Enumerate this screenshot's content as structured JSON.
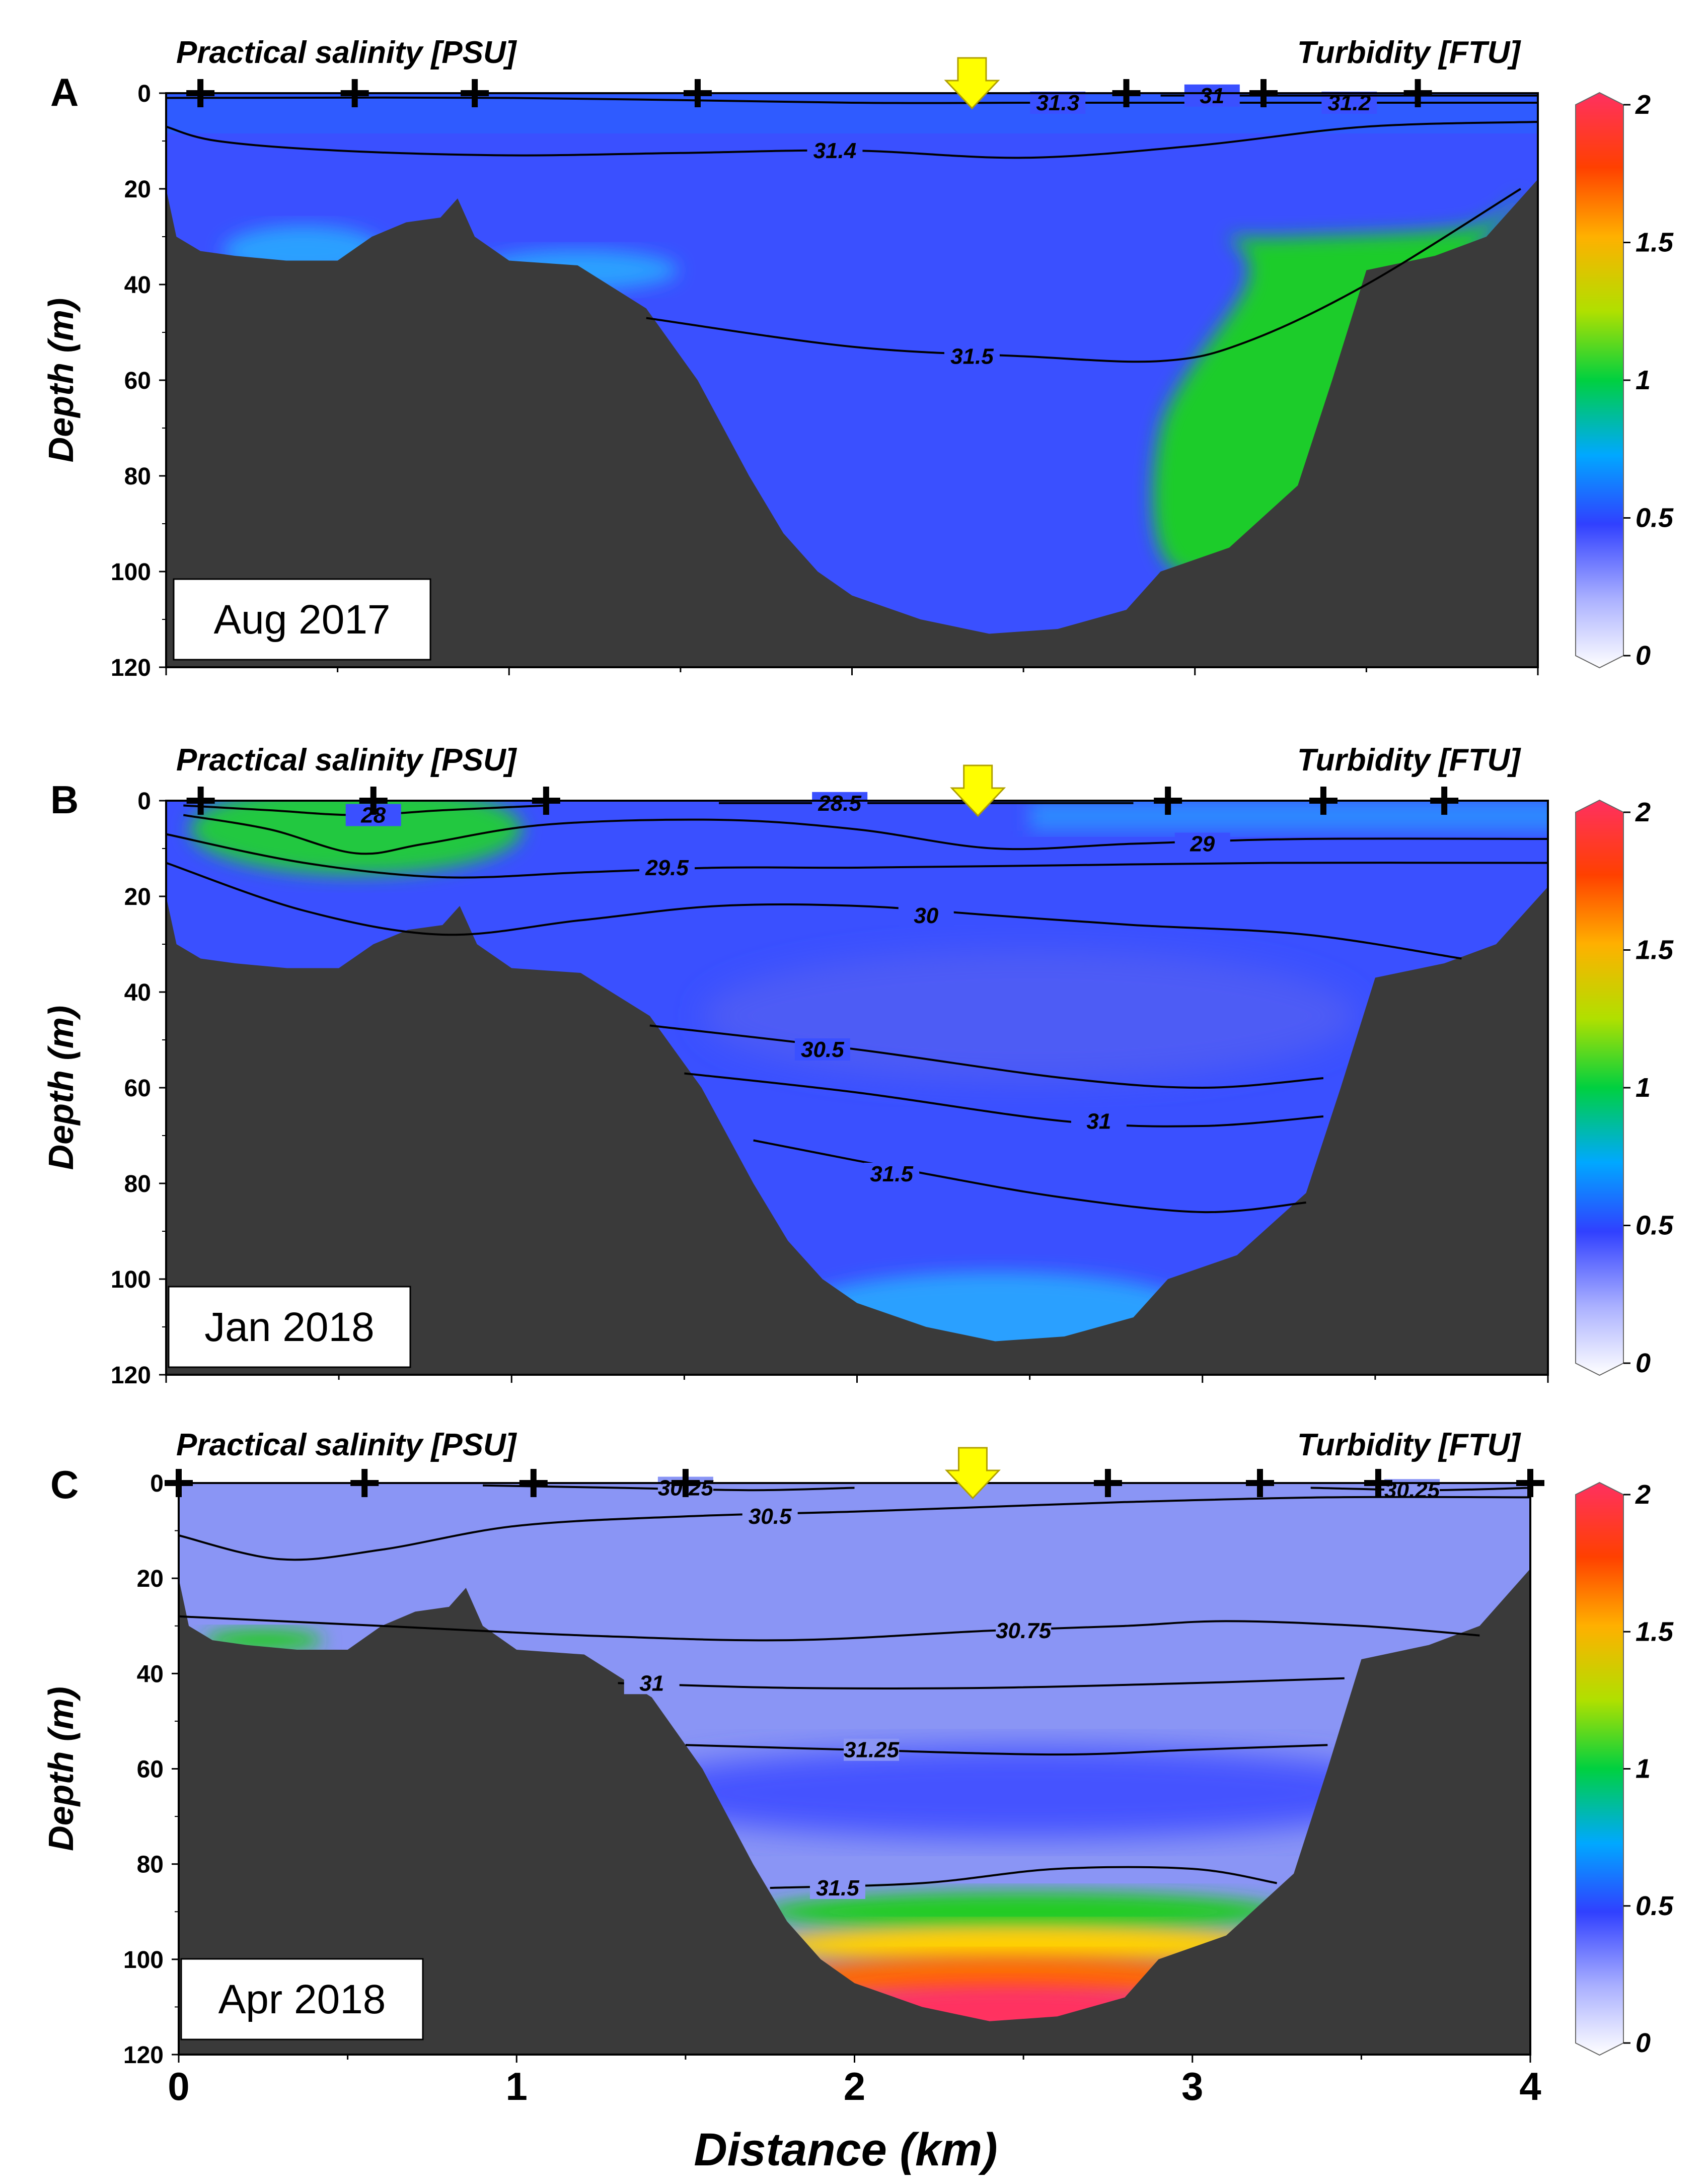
{
  "figure": {
    "xlabel": "Distance (km)",
    "xticks": [
      "0",
      "1",
      "2",
      "3",
      "4"
    ],
    "colors": {
      "seabed": "#3a3a3a",
      "arrow": "#ffff00",
      "contour": "#000000"
    }
  },
  "chart_data": [
    {
      "type": "heatmap",
      "panel": "A",
      "date": "Aug 2017",
      "left_title": "Practical salinity [PSU]",
      "right_title": "Turbidity [FTU]",
      "ylabel": "Depth (m)",
      "ylim": [
        120,
        0
      ],
      "yticks": [
        0,
        20,
        40,
        60,
        80,
        100,
        120
      ],
      "xlim": [
        0,
        4
      ],
      "station_markers_km": [
        0.1,
        0.55,
        0.9,
        1.55,
        2.8,
        3.2,
        3.65
      ],
      "arrow_km": 2.35,
      "colorbar": {
        "min": 0,
        "max": 2,
        "ticks": [
          "2",
          "1.5",
          "1",
          "0.5",
          "0"
        ]
      },
      "background_turbidity_ftu": 0.4,
      "salinity_contours": [
        {
          "value": "31.3",
          "points": [
            [
              0.0,
              1
            ],
            [
              1.0,
              1
            ],
            [
              2.0,
              2
            ],
            [
              2.5,
              2
            ],
            [
              3.0,
              2
            ],
            [
              4.0,
              2
            ]
          ],
          "label_km": 2.6
        },
        {
          "value": "31.2",
          "points": [
            [
              2.8,
              2
            ],
            [
              3.2,
              2
            ],
            [
              4.0,
              2
            ]
          ],
          "label_km": 3.45
        },
        {
          "value": "31",
          "points": [
            [
              2.9,
              0.5
            ],
            [
              3.4,
              0.5
            ],
            [
              4.0,
              0.5
            ]
          ],
          "label_km": 3.05
        },
        {
          "value": "31.4",
          "points": [
            [
              0.0,
              7
            ],
            [
              0.15,
              10
            ],
            [
              0.5,
              12
            ],
            [
              1.0,
              13
            ],
            [
              1.5,
              12.5
            ],
            [
              2.0,
              12
            ],
            [
              2.5,
              13.5
            ],
            [
              3.0,
              11
            ],
            [
              3.5,
              7
            ],
            [
              4.0,
              6
            ]
          ],
          "label_km": 1.95
        },
        {
          "value": "31.5",
          "points": [
            [
              1.4,
              47
            ],
            [
              2.0,
              53
            ],
            [
              2.5,
              55
            ],
            [
              2.9,
              56
            ],
            [
              3.15,
              52
            ],
            [
              3.5,
              40
            ],
            [
              3.95,
              20
            ]
          ],
          "label_km": 2.35
        }
      ],
      "turbidity_features": [
        {
          "description": "high turbidity near eastern slope",
          "value_ftu": 0.9
        }
      ]
    },
    {
      "type": "heatmap",
      "panel": "B",
      "date": "Jan 2018",
      "left_title": "Practical salinity [PSU]",
      "right_title": "Turbidity [FTU]",
      "ylabel": "Depth (m)",
      "ylim": [
        120,
        0
      ],
      "yticks": [
        0,
        20,
        40,
        60,
        80,
        100,
        120
      ],
      "xlim": [
        0,
        4
      ],
      "station_markers_km": [
        0.1,
        0.6,
        1.1,
        2.9,
        3.35,
        3.7
      ],
      "arrow_km": 2.35,
      "colorbar": {
        "min": 0,
        "max": 2,
        "ticks": [
          "2",
          "1.5",
          "1",
          "0.5",
          "0"
        ]
      },
      "background_turbidity_ftu": 0.4,
      "salinity_contours": [
        {
          "value": "28",
          "points": [
            [
              0.05,
              1
            ],
            [
              0.3,
              2
            ],
            [
              0.55,
              3
            ],
            [
              0.8,
              2
            ],
            [
              1.1,
              1
            ]
          ],
          "label_km": 0.6
        },
        {
          "value": "28.5",
          "points": [
            [
              1.6,
              0.5
            ],
            [
              2.0,
              0.5
            ],
            [
              2.4,
              0.5
            ],
            [
              2.8,
              0.5
            ]
          ],
          "label_km": 1.95
        },
        {
          "value": "29",
          "points": [
            [
              0.05,
              3
            ],
            [
              0.3,
              6
            ],
            [
              0.55,
              11
            ],
            [
              0.75,
              9
            ],
            [
              1.1,
              5
            ],
            [
              1.6,
              4
            ],
            [
              2.0,
              6
            ],
            [
              2.4,
              10
            ],
            [
              2.8,
              9
            ],
            [
              3.3,
              8
            ],
            [
              4.0,
              8
            ]
          ],
          "label_km": 3.0
        },
        {
          "value": "29.5",
          "points": [
            [
              0.0,
              7
            ],
            [
              0.4,
              13
            ],
            [
              0.8,
              16
            ],
            [
              1.2,
              15
            ],
            [
              1.6,
              14
            ],
            [
              2.0,
              14
            ],
            [
              2.6,
              13.5
            ],
            [
              3.2,
              13
            ],
            [
              4.0,
              13
            ]
          ],
          "label_km": 1.45
        },
        {
          "value": "30",
          "points": [
            [
              0.0,
              13
            ],
            [
              0.4,
              23
            ],
            [
              0.8,
              28
            ],
            [
              1.2,
              25
            ],
            [
              1.6,
              22
            ],
            [
              2.0,
              22
            ],
            [
              2.4,
              24
            ],
            [
              2.8,
              26
            ],
            [
              3.3,
              28
            ],
            [
              3.75,
              33
            ]
          ],
          "label_km": 2.2
        },
        {
          "value": "30.5",
          "points": [
            [
              1.4,
              47
            ],
            [
              2.0,
              52
            ],
            [
              2.6,
              58
            ],
            [
              3.0,
              60
            ],
            [
              3.35,
              58
            ]
          ],
          "label_km": 1.9
        },
        {
          "value": "31",
          "points": [
            [
              1.5,
              57
            ],
            [
              2.0,
              61
            ],
            [
              2.6,
              67
            ],
            [
              3.0,
              68
            ],
            [
              3.35,
              66
            ]
          ],
          "label_km": 2.7
        },
        {
          "value": "31.5",
          "points": [
            [
              1.7,
              71
            ],
            [
              2.2,
              78
            ],
            [
              2.6,
              83
            ],
            [
              3.0,
              86
            ],
            [
              3.3,
              84
            ]
          ],
          "label_km": 2.1
        }
      ],
      "turbidity_features": [
        {
          "description": "elevated turbidity in western surface layer",
          "value_ftu": 0.9
        },
        {
          "description": "moderate turbidity near bottom of trough",
          "value_ftu": 0.6
        }
      ]
    },
    {
      "type": "heatmap",
      "panel": "C",
      "date": "Apr 2018",
      "left_title": "Practical salinity [PSU]",
      "right_title": "Turbidity [FTU]",
      "ylabel": "Depth (m)",
      "ylim": [
        120,
        0
      ],
      "yticks": [
        0,
        20,
        40,
        60,
        80,
        100,
        120
      ],
      "xlim": [
        0,
        4
      ],
      "station_markers_km": [
        0.0,
        0.55,
        1.05,
        1.5,
        2.75,
        3.2,
        3.55,
        4.0
      ],
      "arrow_km": 2.35,
      "colorbar": {
        "min": 0,
        "max": 2,
        "ticks": [
          "2",
          "1.5",
          "1",
          "0.5",
          "0"
        ]
      },
      "background_turbidity_ftu": 0.2,
      "salinity_contours": [
        {
          "value": "30.25",
          "points": [
            [
              0.9,
              0.5
            ],
            [
              1.3,
              1
            ],
            [
              1.7,
              1.5
            ],
            [
              2.0,
              1
            ]
          ],
          "label_km": 1.5
        },
        {
          "value": "30.25",
          "points": [
            [
              3.35,
              1
            ],
            [
              3.7,
              1.5
            ],
            [
              4.0,
              1
            ]
          ],
          "label_km": 3.65
        },
        {
          "value": "30.5",
          "points": [
            [
              0.0,
              11
            ],
            [
              0.3,
              16
            ],
            [
              0.6,
              14
            ],
            [
              1.0,
              9
            ],
            [
              1.5,
              7
            ],
            [
              2.0,
              6
            ],
            [
              2.4,
              5
            ],
            [
              2.8,
              4
            ],
            [
              3.4,
              3
            ],
            [
              4.0,
              3
            ]
          ],
          "label_km": 1.75
        },
        {
          "value": "30.75",
          "points": [
            [
              0.0,
              28
            ],
            [
              0.6,
              30
            ],
            [
              1.2,
              32
            ],
            [
              1.8,
              33
            ],
            [
              2.4,
              31
            ],
            [
              2.8,
              30
            ],
            [
              3.1,
              29
            ],
            [
              3.5,
              30
            ],
            [
              3.85,
              32
            ]
          ],
          "label_km": 2.5
        },
        {
          "value": "31",
          "points": [
            [
              1.3,
              42
            ],
            [
              1.8,
              43
            ],
            [
              2.4,
              43
            ],
            [
              3.0,
              42
            ],
            [
              3.45,
              41
            ]
          ],
          "label_km": 1.4
        },
        {
          "value": "31.25",
          "points": [
            [
              1.5,
              55
            ],
            [
              2.0,
              56
            ],
            [
              2.6,
              57
            ],
            [
              3.0,
              56
            ],
            [
              3.4,
              55
            ]
          ],
          "label_km": 2.05
        },
        {
          "value": "31.5",
          "points": [
            [
              1.75,
              85
            ],
            [
              2.2,
              84
            ],
            [
              2.6,
              81
            ],
            [
              3.0,
              81
            ],
            [
              3.25,
              84
            ]
          ],
          "label_km": 1.95
        }
      ],
      "turbidity_features": [
        {
          "description": "high turbidity bottom nepheloid layer",
          "value_ftu": 1.9
        },
        {
          "description": "elevated turbidity on western shelf",
          "value_ftu": 0.9
        }
      ]
    }
  ],
  "bathymetry_km_depth": [
    [
      0.0,
      20
    ],
    [
      0.03,
      30
    ],
    [
      0.1,
      33
    ],
    [
      0.2,
      34
    ],
    [
      0.35,
      35
    ],
    [
      0.5,
      35
    ],
    [
      0.6,
      30
    ],
    [
      0.7,
      27
    ],
    [
      0.8,
      26
    ],
    [
      0.85,
      22
    ],
    [
      0.9,
      30
    ],
    [
      1.0,
      35
    ],
    [
      1.2,
      36
    ],
    [
      1.4,
      45
    ],
    [
      1.55,
      60
    ],
    [
      1.7,
      80
    ],
    [
      1.8,
      92
    ],
    [
      1.9,
      100
    ],
    [
      2.0,
      105
    ],
    [
      2.2,
      110
    ],
    [
      2.4,
      113
    ],
    [
      2.6,
      112
    ],
    [
      2.8,
      108
    ],
    [
      2.9,
      100
    ],
    [
      3.1,
      95
    ],
    [
      3.3,
      82
    ],
    [
      3.4,
      60
    ],
    [
      3.5,
      37
    ],
    [
      3.7,
      34
    ],
    [
      3.85,
      30
    ],
    [
      4.0,
      18
    ]
  ]
}
